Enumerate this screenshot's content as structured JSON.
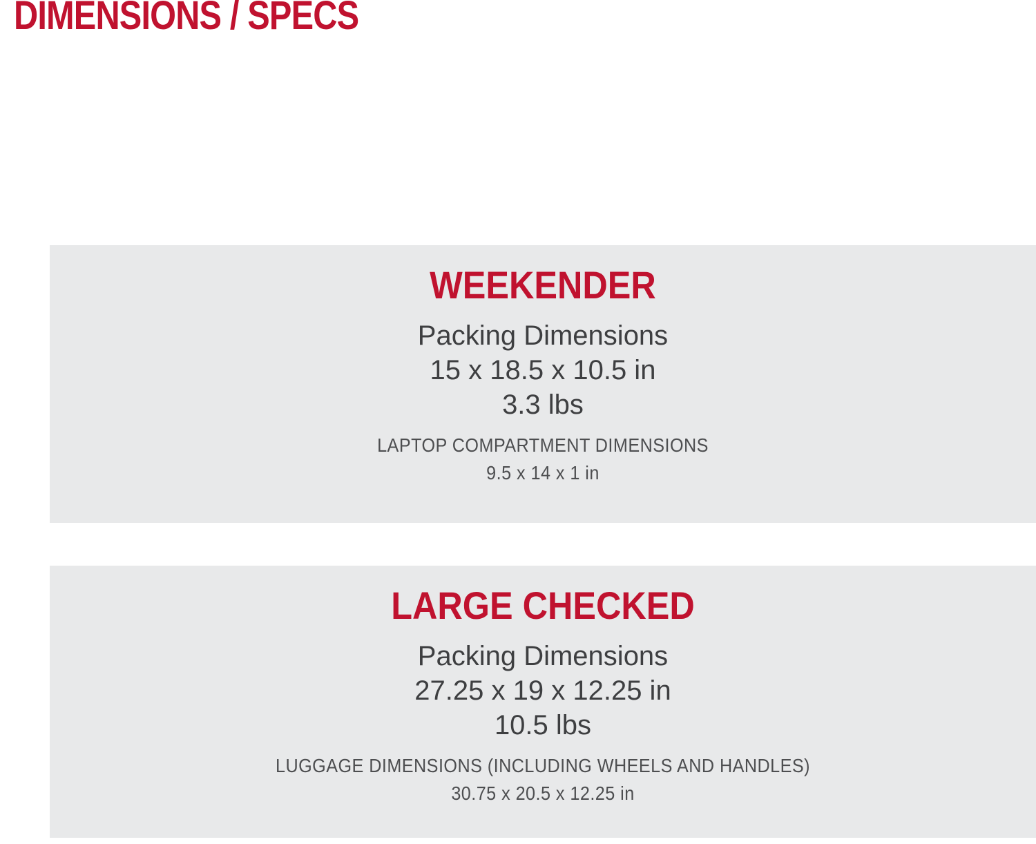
{
  "page": {
    "title": "DIMENSIONS / SPECS"
  },
  "colors": {
    "accent_red": "#C0122F",
    "panel_gray": "#E8E9EA",
    "text_dark": "#3E3F41",
    "text_muted": "#4D4E50",
    "background": "#FFFFFF"
  },
  "panels": [
    {
      "title": "WEEKENDER",
      "packing_label": "Packing Dimensions",
      "packing_size": "15 x 18.5 x 10.5 in",
      "weight": "3.3 lbs",
      "sub_label": "LAPTOP COMPARTMENT DIMENSIONS",
      "sub_size": "9.5 x 14 x 1 in"
    },
    {
      "title": "LARGE CHECKED",
      "packing_label": "Packing Dimensions",
      "packing_size": "27.25 x 19 x 12.25 in",
      "weight": "10.5 lbs",
      "sub_label": "LUGGAGE DIMENSIONS (INCLUDING WHEELS AND HANDLES)",
      "sub_size": "30.75 x 20.5 x 12.25 in"
    }
  ]
}
